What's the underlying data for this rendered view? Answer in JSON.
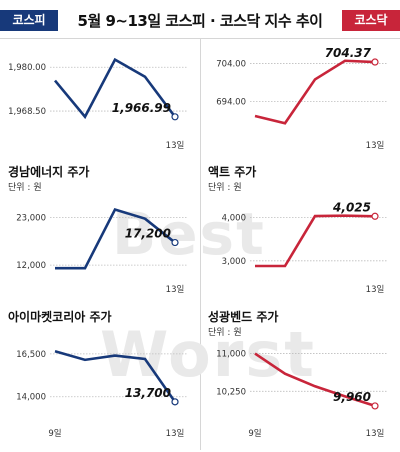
{
  "header": {
    "title": "5월 9~13일  코스피 · 코스닥 지수 추이",
    "left_tag": "코스피",
    "right_tag": "코스닥"
  },
  "watermark": {
    "best": "Best",
    "worst": "Worst"
  },
  "colors": {
    "kospi": "#17397a",
    "kosdaq": "#c8253a",
    "grid": "#bdbdbd"
  },
  "chart_data": [
    {
      "id": "kospi",
      "type": "line",
      "title": "",
      "unit": "",
      "x": [
        "9일",
        "10일",
        "11일",
        "12일",
        "13일"
      ],
      "x_tick_labels": [
        "",
        "",
        "",
        "",
        "13일"
      ],
      "y": [
        1976.5,
        1967.0,
        1982.0,
        1977.5,
        1966.99
      ],
      "y_ticks": [
        1968.5,
        1980.0
      ],
      "y_tick_labels": [
        "1,968.50",
        "1,980.00"
      ],
      "ylim": [
        1963,
        1984
      ],
      "last_label": "1,966.99",
      "color": "#17397a"
    },
    {
      "id": "kosdaq",
      "type": "line",
      "title": "",
      "unit": "",
      "x": [
        "9일",
        "10일",
        "11일",
        "12일",
        "13일"
      ],
      "x_tick_labels": [
        "",
        "",
        "",
        "",
        "13일"
      ],
      "y": [
        690.2,
        688.3,
        699.8,
        704.7,
        704.37
      ],
      "y_ticks": [
        694.0,
        704.0
      ],
      "y_tick_labels": [
        "694.00",
        "704.00"
      ],
      "ylim": [
        686,
        707
      ],
      "last_label": "704.37",
      "color": "#c8253a"
    },
    {
      "id": "kyungnam",
      "type": "line",
      "title": "경남에너지 주가",
      "unit": "단위 : 원",
      "x": [
        "9일",
        "10일",
        "11일",
        "12일",
        "13일"
      ],
      "x_tick_labels": [
        "",
        "",
        "",
        "",
        "13일"
      ],
      "y": [
        11300,
        11300,
        24800,
        22700,
        17200
      ],
      "y_ticks": [
        12000,
        23000
      ],
      "y_tick_labels": [
        "12,000",
        "23,000"
      ],
      "ylim": [
        9500,
        27000
      ],
      "last_label": "17,200",
      "color": "#17397a"
    },
    {
      "id": "act",
      "type": "line",
      "title": "액트 주가",
      "unit": "단위 : 원",
      "x": [
        "9일",
        "10일",
        "11일",
        "12일",
        "13일"
      ],
      "x_tick_labels": [
        "",
        "",
        "",
        "",
        "13일"
      ],
      "y": [
        2880,
        2880,
        4030,
        4040,
        4025
      ],
      "y_ticks": [
        3000,
        4000
      ],
      "y_tick_labels": [
        "3,000",
        "4,000"
      ],
      "ylim": [
        2650,
        4400
      ],
      "last_label": "4,025",
      "color": "#c8253a"
    },
    {
      "id": "imarket",
      "type": "line",
      "title": "아이마켓코리아 주가",
      "unit": "",
      "x": [
        "9일",
        "10일",
        "11일",
        "12일",
        "13일"
      ],
      "x_tick_labels": [
        "9일",
        "",
        "",
        "",
        "13일"
      ],
      "y": [
        16650,
        16150,
        16400,
        16200,
        13700
      ],
      "y_ticks": [
        14000,
        16500
      ],
      "y_tick_labels": [
        "14,000",
        "16,500"
      ],
      "ylim": [
        12700,
        17600
      ],
      "last_label": "13,700",
      "color": "#17397a"
    },
    {
      "id": "sungkwang",
      "type": "line",
      "title": "성광벤드 주가",
      "unit": "단위 : 원",
      "x": [
        "9일",
        "10일",
        "11일",
        "12일",
        "13일"
      ],
      "x_tick_labels": [
        "9일",
        "",
        "",
        "",
        "13일"
      ],
      "y": [
        11000,
        10600,
        10350,
        10150,
        9960
      ],
      "y_ticks": [
        10250,
        11000
      ],
      "y_tick_labels": [
        "10,250",
        "11,000"
      ],
      "ylim": [
        9700,
        11250
      ],
      "last_label": "9,960",
      "color": "#c8253a"
    }
  ]
}
